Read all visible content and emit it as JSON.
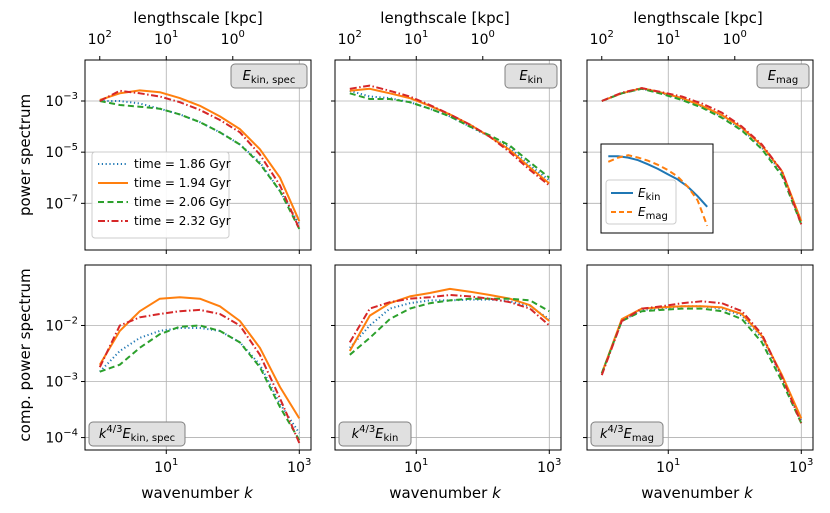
{
  "figure": {
    "top_axis_label": "lengthscale [kpc]",
    "top_ticks": [
      {
        "label": "10",
        "exp": "2"
      },
      {
        "label": "10",
        "exp": "1"
      },
      {
        "label": "10",
        "exp": "0"
      }
    ],
    "x_label_prefix": "wavenumber ",
    "x_label_var": "k",
    "x_ticks": [
      {
        "label": "10",
        "exp": "1"
      },
      {
        "label": "10",
        "exp": "3"
      }
    ],
    "y_label_top": "power spectrum",
    "y_label_bottom": "comp. power spectrum",
    "y_ticks_top": [
      {
        "label": "10",
        "exp": "−3"
      },
      {
        "label": "10",
        "exp": "−5"
      },
      {
        "label": "10",
        "exp": "−7"
      }
    ],
    "y_ticks_bottom": [
      {
        "label": "10",
        "exp": "−2"
      },
      {
        "label": "10",
        "exp": "−3"
      },
      {
        "label": "10",
        "exp": "−4"
      }
    ],
    "badge_main": "E",
    "badge_prefix": "k",
    "badge_prefix_exp": "4/3",
    "badge_subs": [
      "kin, spec",
      "kin",
      "mag"
    ],
    "inset_legend": [
      {
        "main": "E",
        "sub": "kin",
        "color": "#1f77b4"
      },
      {
        "main": "E",
        "sub": "mag",
        "color": "#ff7f0e"
      }
    ]
  },
  "legend": [
    {
      "label": "time = 1.86 Gyr",
      "color": "#1f77b4",
      "style": "dotted"
    },
    {
      "label": "time = 1.94 Gyr",
      "color": "#ff7f0e",
      "style": "solid"
    },
    {
      "label": "time = 2.06 Gyr",
      "color": "#2ca02c",
      "style": "dashed"
    },
    {
      "label": "time = 2.32 Gyr",
      "color": "#d62728",
      "style": "dashdot"
    }
  ],
  "chart_data": [
    {
      "type": "line",
      "panel": "E_kin,spec power spectrum",
      "xscale": "log",
      "yscale": "log",
      "xlim": [
        0.6,
        1500
      ],
      "ylim": [
        1.5e-09,
        0.04
      ],
      "x": [
        1,
        2,
        4,
        8,
        16,
        32,
        64,
        128,
        256,
        512,
        1000
      ],
      "series": [
        {
          "name": "time = 1.86 Gyr",
          "values": [
            0.001,
            0.001,
            0.0008,
            0.0005,
            0.0003,
            0.00015,
            6e-05,
            2e-05,
            4e-06,
            3e-07,
            1.5e-08
          ]
        },
        {
          "name": "time = 1.94 Gyr",
          "values": [
            0.0011,
            0.002,
            0.0026,
            0.0022,
            0.0013,
            0.00065,
            0.00025,
            8e-05,
            1.3e-05,
            1e-06,
            2e-08
          ]
        },
        {
          "name": "time = 2.06 Gyr",
          "values": [
            0.001,
            0.0007,
            0.0006,
            0.0005,
            0.0003,
            0.00015,
            6e-05,
            2e-05,
            3.5e-06,
            3e-07,
            1e-08
          ]
        },
        {
          "name": "time = 2.32 Gyr",
          "values": [
            0.001,
            0.0025,
            0.002,
            0.0015,
            0.0009,
            0.00045,
            0.00018,
            6e-05,
            8e-06,
            5e-07,
            1e-08
          ]
        }
      ]
    },
    {
      "type": "line",
      "panel": "E_kin power spectrum",
      "xscale": "log",
      "yscale": "log",
      "xlim": [
        0.6,
        1500
      ],
      "ylim": [
        1.5e-09,
        0.04
      ],
      "x": [
        1,
        2,
        4,
        8,
        16,
        32,
        64,
        128,
        256,
        512,
        1000
      ],
      "series": [
        {
          "name": "time = 1.86 Gyr",
          "values": [
            0.0025,
            0.0015,
            0.0013,
            0.0009,
            0.0005,
            0.00025,
            0.0001,
            4e-05,
            1.5e-05,
            3e-06,
            8e-07
          ]
        },
        {
          "name": "time = 1.94 Gyr",
          "values": [
            0.0025,
            0.003,
            0.002,
            0.0013,
            0.00065,
            0.0003,
            0.00012,
            4e-05,
            1.2e-05,
            2.5e-06,
            6e-07
          ]
        },
        {
          "name": "time = 2.06 Gyr",
          "values": [
            0.002,
            0.0012,
            0.0012,
            0.0009,
            0.0005,
            0.00025,
            0.0001,
            4.5e-05,
            1.8e-05,
            4e-06,
            1e-06
          ]
        },
        {
          "name": "time = 2.32 Gyr",
          "values": [
            0.003,
            0.004,
            0.0025,
            0.0015,
            0.0007,
            0.0003,
            0.00012,
            4e-05,
            1e-05,
            2e-06,
            5e-07
          ]
        }
      ]
    },
    {
      "type": "line",
      "panel": "E_mag power spectrum",
      "xscale": "log",
      "yscale": "log",
      "xlim": [
        0.6,
        1500
      ],
      "ylim": [
        1.5e-09,
        0.04
      ],
      "x": [
        1,
        2,
        4,
        8,
        16,
        32,
        64,
        128,
        256,
        512,
        1000
      ],
      "series": [
        {
          "name": "time = 1.86 Gyr",
          "values": [
            0.001,
            0.002,
            0.003,
            0.002,
            0.0012,
            0.0006,
            0.00025,
            8e-05,
            1.5e-05,
            1.5e-06,
            2e-08
          ]
        },
        {
          "name": "time = 1.94 Gyr",
          "values": [
            0.001,
            0.002,
            0.0032,
            0.0021,
            0.0013,
            0.00065,
            0.00028,
            9e-05,
            1.8e-05,
            1.8e-06,
            2e-08
          ]
        },
        {
          "name": "time = 2.06 Gyr",
          "values": [
            0.001,
            0.002,
            0.003,
            0.0019,
            0.0011,
            0.00055,
            0.00022,
            7e-05,
            1.3e-05,
            1.2e-06,
            1.5e-08
          ]
        },
        {
          "name": "time = 2.32 Gyr",
          "values": [
            0.001,
            0.0021,
            0.0032,
            0.0022,
            0.0015,
            0.0008,
            0.00035,
            0.0001,
            2e-05,
            1.8e-06,
            1.5e-08
          ]
        }
      ]
    },
    {
      "type": "line",
      "panel": "k^(4/3) E_kin,spec compensated",
      "xscale": "log",
      "yscale": "log",
      "xlim": [
        0.6,
        1500
      ],
      "ylim": [
        6e-05,
        0.12
      ],
      "x": [
        1,
        2,
        4,
        8,
        16,
        32,
        64,
        128,
        256,
        512,
        1000
      ],
      "series": [
        {
          "name": "time = 1.86 Gyr",
          "values": [
            0.0015,
            0.0035,
            0.006,
            0.008,
            0.009,
            0.009,
            0.008,
            0.005,
            0.002,
            0.0004,
            0.00012
          ]
        },
        {
          "name": "time = 1.94 Gyr",
          "values": [
            0.002,
            0.008,
            0.018,
            0.03,
            0.032,
            0.03,
            0.022,
            0.012,
            0.004,
            0.0008,
            0.00022
          ]
        },
        {
          "name": "time = 2.06 Gyr",
          "values": [
            0.0015,
            0.002,
            0.004,
            0.007,
            0.0095,
            0.01,
            0.008,
            0.005,
            0.0018,
            0.00035,
            9e-05
          ]
        },
        {
          "name": "time = 2.32 Gyr",
          "values": [
            0.0018,
            0.01,
            0.014,
            0.016,
            0.018,
            0.019,
            0.016,
            0.01,
            0.003,
            0.0005,
            8e-05
          ]
        }
      ]
    },
    {
      "type": "line",
      "panel": "k^(4/3) E_kin compensated",
      "xscale": "log",
      "yscale": "log",
      "xlim": [
        0.6,
        1500
      ],
      "ylim": [
        6e-05,
        0.12
      ],
      "x": [
        1,
        2,
        4,
        8,
        16,
        32,
        64,
        128,
        256,
        512,
        1000
      ],
      "series": [
        {
          "name": "time = 1.86 Gyr",
          "values": [
            0.004,
            0.01,
            0.02,
            0.025,
            0.028,
            0.028,
            0.029,
            0.029,
            0.027,
            0.022,
            0.013
          ]
        },
        {
          "name": "time = 1.94 Gyr",
          "values": [
            0.0035,
            0.015,
            0.025,
            0.033,
            0.038,
            0.045,
            0.04,
            0.035,
            0.03,
            0.023,
            0.012
          ]
        },
        {
          "name": "time = 2.06 Gyr",
          "values": [
            0.003,
            0.006,
            0.013,
            0.02,
            0.025,
            0.028,
            0.03,
            0.03,
            0.03,
            0.028,
            0.018
          ]
        },
        {
          "name": "time = 2.32 Gyr",
          "values": [
            0.005,
            0.02,
            0.026,
            0.03,
            0.032,
            0.035,
            0.033,
            0.03,
            0.026,
            0.02,
            0.01
          ]
        }
      ]
    },
    {
      "type": "line",
      "panel": "k^(4/3) E_mag compensated",
      "xscale": "log",
      "yscale": "log",
      "xlim": [
        0.6,
        1500
      ],
      "ylim": [
        6e-05,
        0.12
      ],
      "x": [
        1,
        2,
        4,
        8,
        16,
        32,
        64,
        128,
        256,
        512,
        1000
      ],
      "series": [
        {
          "name": "time = 1.86 Gyr",
          "values": [
            0.0014,
            0.012,
            0.019,
            0.02,
            0.022,
            0.022,
            0.02,
            0.015,
            0.006,
            0.0012,
            0.0002
          ]
        },
        {
          "name": "time = 1.94 Gyr",
          "values": [
            0.0014,
            0.013,
            0.02,
            0.021,
            0.022,
            0.022,
            0.021,
            0.016,
            0.0065,
            0.0013,
            0.00022
          ]
        },
        {
          "name": "time = 2.06 Gyr",
          "values": [
            0.0014,
            0.012,
            0.018,
            0.019,
            0.02,
            0.02,
            0.018,
            0.013,
            0.005,
            0.001,
            0.00018
          ]
        },
        {
          "name": "time = 2.32 Gyr",
          "values": [
            0.0013,
            0.012,
            0.02,
            0.022,
            0.025,
            0.027,
            0.025,
            0.018,
            0.007,
            0.0012,
            0.00018
          ]
        }
      ]
    },
    {
      "type": "line",
      "panel": "inset (shape comparison)",
      "xscale": "log",
      "yscale": "log",
      "xlim": [
        0.6,
        1500
      ],
      "ylim": [
        6e-09,
        0.02
      ],
      "x": [
        1,
        2,
        4,
        8,
        16,
        32,
        64,
        128,
        256,
        512,
        1000
      ],
      "series": [
        {
          "name": "E_kin",
          "values": [
            0.0025,
            0.0025,
            0.002,
            0.0013,
            0.00065,
            0.0003,
            0.00012,
            5e-05,
            1.5e-05,
            3e-06,
            5e-07
          ]
        },
        {
          "name": "E_mag",
          "values": [
            0.001,
            0.002,
            0.003,
            0.002,
            0.0012,
            0.0006,
            0.00025,
            8e-05,
            1.5e-05,
            1.5e-06,
            2e-08
          ]
        }
      ]
    }
  ]
}
